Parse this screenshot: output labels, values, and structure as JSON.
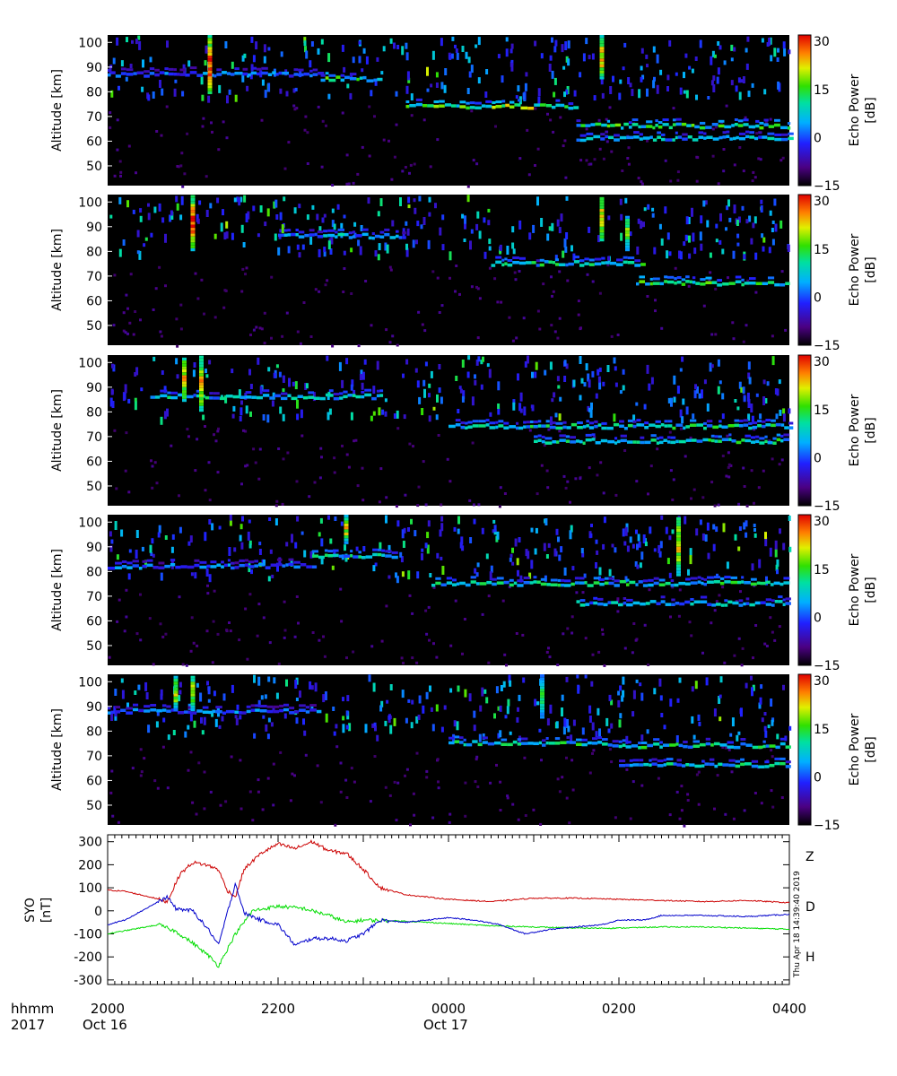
{
  "chart_data": [
    {
      "type": "heatmap",
      "panel": 1,
      "ylabel": "Altitude [km]",
      "ylim": [
        42,
        103
      ],
      "yticks": [
        "50",
        "60",
        "70",
        "80",
        "90",
        "100"
      ],
      "xlim_hours": [
        20,
        28
      ],
      "colorbar": {
        "label": "Echo Power",
        "unit": "[dB]",
        "range": [
          -15,
          32
        ],
        "ticks": [
          "-15",
          "0",
          "15",
          "30"
        ]
      },
      "echo_layers": [
        {
          "from": 20.0,
          "to": 22.5,
          "alt": 87,
          "level": 0.4
        },
        {
          "from": 22.5,
          "to": 23.2,
          "alt": 85,
          "level": 0.65
        },
        {
          "from": 23.5,
          "to": 25.5,
          "alt": 74,
          "level": 0.75
        },
        {
          "from": 25.5,
          "to": 28.0,
          "alt": 66,
          "level": 0.65
        },
        {
          "from": 25.5,
          "to": 28.0,
          "alt": 61,
          "level": 0.5
        }
      ],
      "bursts": [
        {
          "t": 21.2,
          "top": 102,
          "bottom": 79,
          "level": 0.95
        },
        {
          "t": 25.8,
          "top": 102,
          "bottom": 85,
          "level": 0.85
        }
      ]
    },
    {
      "type": "heatmap",
      "panel": 2,
      "ylabel": "Altitude [km]",
      "ylim": [
        42,
        103
      ],
      "yticks": [
        "50",
        "60",
        "70",
        "80",
        "90",
        "100"
      ],
      "xlim_hours": [
        20,
        28
      ],
      "colorbar": {
        "label": "Echo Power",
        "unit": "[dB]",
        "range": [
          -15,
          32
        ],
        "ticks": [
          "-15",
          "0",
          "15",
          "30"
        ]
      },
      "echo_layers": [
        {
          "from": 22.0,
          "to": 23.5,
          "alt": 86,
          "level": 0.5
        },
        {
          "from": 24.5,
          "to": 26.3,
          "alt": 75,
          "level": 0.6
        },
        {
          "from": 26.2,
          "to": 28.0,
          "alt": 67,
          "level": 0.65
        }
      ],
      "bursts": [
        {
          "t": 21.0,
          "top": 102,
          "bottom": 80,
          "level": 0.95
        },
        {
          "t": 25.8,
          "top": 102,
          "bottom": 84,
          "level": 0.85
        },
        {
          "t": 26.1,
          "top": 94,
          "bottom": 80,
          "level": 0.7
        }
      ]
    },
    {
      "type": "heatmap",
      "panel": 3,
      "ylabel": "Altitude [km]",
      "ylim": [
        42,
        103
      ],
      "yticks": [
        "50",
        "60",
        "70",
        "80",
        "90",
        "100"
      ],
      "xlim_hours": [
        20,
        28
      ],
      "colorbar": {
        "label": "Echo Power",
        "unit": "[dB]",
        "range": [
          -15,
          32
        ],
        "ticks": [
          "-15",
          "0",
          "15",
          "30"
        ]
      },
      "echo_layers": [
        {
          "from": 20.5,
          "to": 23.2,
          "alt": 86,
          "level": 0.55
        },
        {
          "from": 24.0,
          "to": 28.0,
          "alt": 74,
          "level": 0.6
        },
        {
          "from": 25.0,
          "to": 28.0,
          "alt": 68,
          "level": 0.6
        }
      ],
      "bursts": [
        {
          "t": 20.9,
          "top": 102,
          "bottom": 84,
          "level": 0.85
        },
        {
          "t": 21.1,
          "top": 102,
          "bottom": 80,
          "level": 0.85
        }
      ]
    },
    {
      "type": "heatmap",
      "panel": 4,
      "ylabel": "Altitude [km]",
      "ylim": [
        42,
        103
      ],
      "yticks": [
        "50",
        "60",
        "70",
        "80",
        "90",
        "100"
      ],
      "xlim_hours": [
        20,
        28
      ],
      "colorbar": {
        "label": "Echo Power",
        "unit": "[dB]",
        "range": [
          -15,
          32
        ],
        "ticks": [
          "-15",
          "0",
          "15",
          "30"
        ]
      },
      "echo_layers": [
        {
          "from": 20.0,
          "to": 22.4,
          "alt": 82,
          "level": 0.4
        },
        {
          "from": 22.4,
          "to": 23.4,
          "alt": 86,
          "level": 0.55
        },
        {
          "from": 23.8,
          "to": 28.0,
          "alt": 75,
          "level": 0.6
        },
        {
          "from": 25.5,
          "to": 28.0,
          "alt": 67,
          "level": 0.5
        }
      ],
      "bursts": [
        {
          "t": 22.8,
          "top": 102,
          "bottom": 91,
          "level": 0.8
        },
        {
          "t": 26.7,
          "top": 102,
          "bottom": 78,
          "level": 0.8
        }
      ]
    },
    {
      "type": "heatmap",
      "panel": 5,
      "ylabel": "Altitude [km]",
      "ylim": [
        42,
        103
      ],
      "yticks": [
        "50",
        "60",
        "70",
        "80",
        "90",
        "100"
      ],
      "xlim_hours": [
        20,
        28
      ],
      "colorbar": {
        "label": "Echo Power",
        "unit": "[dB]",
        "range": [
          -15,
          32
        ],
        "ticks": [
          "-15",
          "0",
          "15",
          "30"
        ]
      },
      "echo_layers": [
        {
          "from": 20.0,
          "to": 22.5,
          "alt": 88,
          "level": 0.4
        },
        {
          "from": 24.0,
          "to": 25.8,
          "alt": 75,
          "level": 0.6
        },
        {
          "from": 25.8,
          "to": 28.0,
          "alt": 74,
          "level": 0.6
        },
        {
          "from": 26.0,
          "to": 28.0,
          "alt": 66,
          "level": 0.55
        }
      ],
      "bursts": [
        {
          "t": 20.8,
          "top": 102,
          "bottom": 88,
          "level": 0.75
        },
        {
          "t": 21.0,
          "top": 102,
          "bottom": 88,
          "level": 0.75
        },
        {
          "t": 25.1,
          "top": 102,
          "bottom": 85,
          "level": 0.6
        }
      ]
    },
    {
      "type": "line",
      "panel": 6,
      "ylabel": "SYO",
      "yunit": "[nT]",
      "ylim": [
        -320,
        330
      ],
      "yticks": [
        "-300",
        "-200",
        "-100",
        "0",
        "100",
        "200",
        "300"
      ],
      "xlim_hours": [
        20,
        28
      ],
      "series": [
        {
          "name": "Z",
          "color": "#cc0000",
          "x": [
            20.0,
            20.2,
            20.5,
            20.7,
            20.85,
            21.0,
            21.15,
            21.3,
            21.4,
            21.5,
            21.6,
            21.8,
            22.0,
            22.2,
            22.4,
            22.6,
            22.8,
            23.0,
            23.2,
            23.5,
            24.0,
            24.5,
            25.0,
            25.5,
            26.0,
            26.5,
            27.0,
            27.5,
            28.0
          ],
          "y": [
            90,
            85,
            60,
            40,
            160,
            210,
            200,
            180,
            90,
            60,
            180,
            250,
            290,
            270,
            300,
            260,
            250,
            180,
            100,
            70,
            50,
            40,
            55,
            55,
            50,
            45,
            40,
            45,
            35
          ]
        },
        {
          "name": "D",
          "color": "#00dd00",
          "x": [
            20.0,
            20.3,
            20.6,
            20.8,
            21.0,
            21.2,
            21.3,
            21.5,
            21.7,
            22.0,
            22.3,
            22.6,
            22.8,
            23.0,
            23.5,
            24.0,
            24.5,
            25.0,
            25.5,
            26.0,
            26.5,
            27.0,
            27.5,
            28.0
          ],
          "y": [
            -100,
            -80,
            -60,
            -90,
            -140,
            -200,
            -240,
            -100,
            0,
            20,
            10,
            -20,
            -50,
            -40,
            -45,
            -55,
            -65,
            -70,
            -75,
            -75,
            -70,
            -70,
            -75,
            -80
          ]
        },
        {
          "name": "H",
          "color": "#0000cc",
          "x": [
            20.0,
            20.2,
            20.5,
            20.7,
            20.8,
            21.0,
            21.2,
            21.3,
            21.5,
            21.6,
            21.8,
            22.0,
            22.2,
            22.4,
            22.6,
            22.8,
            23.0,
            23.2,
            23.5,
            24.0,
            24.3,
            24.6,
            24.9,
            25.2,
            25.5,
            25.8,
            26.0,
            26.3,
            26.5,
            27.0,
            27.5,
            28.0
          ],
          "y": [
            -60,
            -40,
            20,
            60,
            10,
            0,
            -90,
            -150,
            120,
            -10,
            -40,
            -60,
            -150,
            -120,
            -120,
            -130,
            -100,
            -40,
            -50,
            -30,
            -40,
            -60,
            -100,
            -80,
            -70,
            -60,
            -40,
            -40,
            -20,
            -20,
            -25,
            -15
          ]
        }
      ],
      "stamp": "Thu Apr 18 14:39:40 2019"
    }
  ],
  "x_axis": {
    "row_label_1": "hhmm",
    "row_label_2": "2017",
    "ticks": [
      {
        "hour": 20,
        "label": "2000",
        "date": "Oct 16"
      },
      {
        "hour": 22,
        "label": "2200",
        "date": ""
      },
      {
        "hour": 24,
        "label": "0000",
        "date": "Oct 17"
      },
      {
        "hour": 26,
        "label": "0200",
        "date": ""
      },
      {
        "hour": 28,
        "label": "0400",
        "date": ""
      }
    ]
  }
}
